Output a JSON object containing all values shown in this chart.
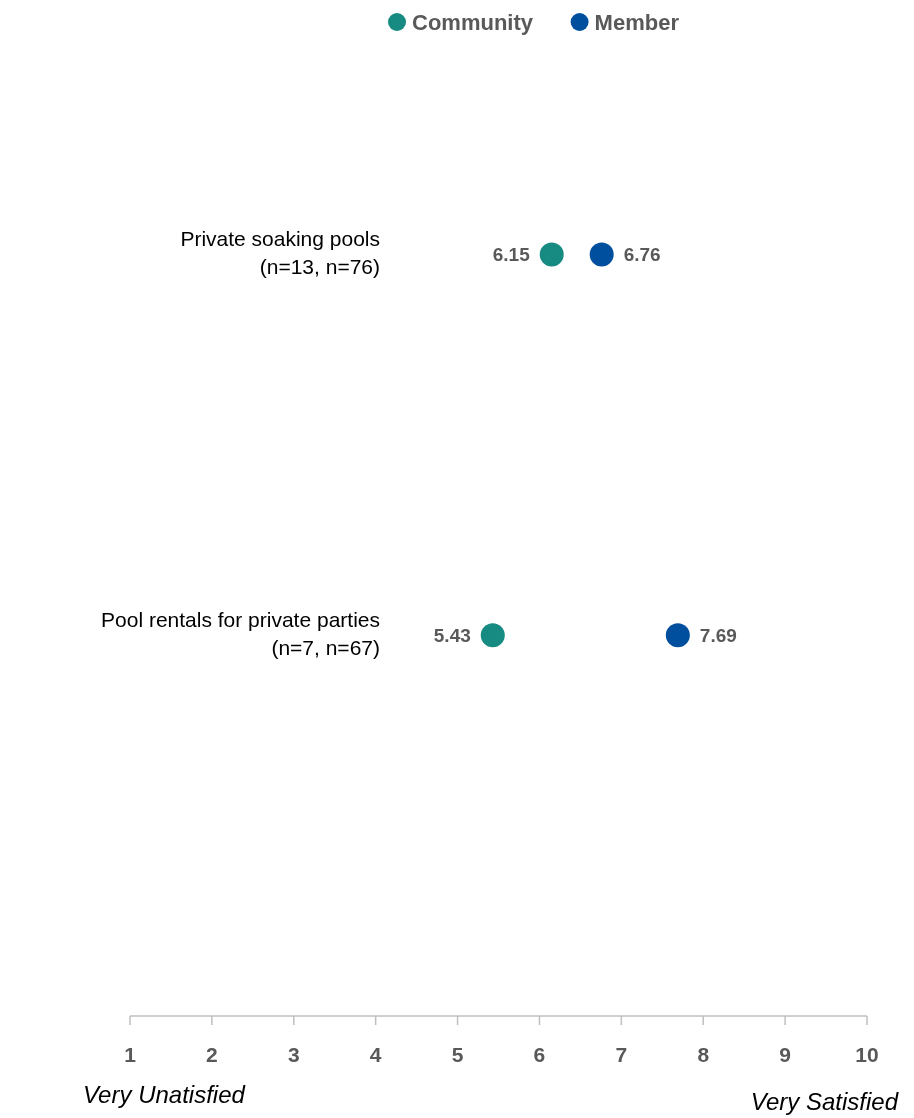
{
  "chart_data": {
    "type": "scatter",
    "orientation": "horizontal",
    "categories": [
      "Private soaking pools\n(n=13, n=76)",
      "Pool rentals for private parties\n(n=7, n=67)"
    ],
    "series": [
      {
        "name": "Community",
        "color": "#178a82",
        "values": [
          6.15,
          5.43
        ]
      },
      {
        "name": "Member",
        "color": "#004f9f",
        "values": [
          6.76,
          7.69
        ]
      }
    ],
    "xlim": [
      1,
      10
    ],
    "xticks": [
      1,
      2,
      3,
      4,
      5,
      6,
      7,
      8,
      9,
      10
    ],
    "data_labels": true,
    "legend": "top",
    "marker": "circle",
    "grid": false,
    "annotations": [
      "Very Unatisfied",
      "Very Satisfied"
    ]
  }
}
